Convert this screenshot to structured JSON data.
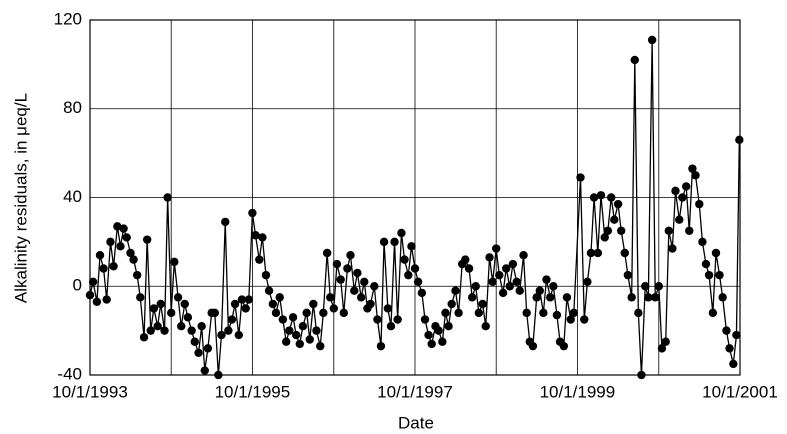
{
  "chart_data": {
    "type": "line",
    "xlabel": "Date",
    "ylabel": "Alkalinity residuals, in μeq/L",
    "color": "#000000",
    "grid": true,
    "xlim": [
      "1993-10-01",
      "2001-10-01"
    ],
    "ylim": [
      -40,
      120
    ],
    "yticks": [
      -40,
      0,
      40,
      80,
      120
    ],
    "xticks": [
      {
        "value": "1993-10-01",
        "label": "10/1/1993"
      },
      "1994-10-01",
      {
        "value": "1995-10-01",
        "label": "10/1/1995"
      },
      "1996-10-01",
      {
        "value": "1997-10-01",
        "label": "10/1/1997"
      },
      "1998-10-01",
      {
        "value": "1999-10-01",
        "label": "10/1/1999"
      },
      "2000-10-01",
      {
        "value": "2001-10-01",
        "label": "10/1/2001"
      }
    ],
    "x": [
      "1993-10-01",
      "1993-10-15",
      "1993-11-01",
      "1993-11-15",
      "1993-12-01",
      "1993-12-15",
      "1994-01-01",
      "1994-01-15",
      "1994-02-01",
      "1994-02-15",
      "1994-03-01",
      "1994-03-15",
      "1994-04-01",
      "1994-04-15",
      "1994-05-01",
      "1994-05-15",
      "1994-06-01",
      "1994-06-15",
      "1994-07-01",
      "1994-07-15",
      "1994-08-01",
      "1994-08-15",
      "1994-09-01",
      "1994-09-15",
      "1994-10-01",
      "1994-10-15",
      "1994-11-01",
      "1994-11-15",
      "1994-12-01",
      "1994-12-15",
      "1995-01-01",
      "1995-01-15",
      "1995-02-01",
      "1995-02-15",
      "1995-03-01",
      "1995-03-15",
      "1995-04-01",
      "1995-04-15",
      "1995-05-01",
      "1995-05-15",
      "1995-06-01",
      "1995-06-15",
      "1995-07-01",
      "1995-07-15",
      "1995-08-01",
      "1995-08-15",
      "1995-09-01",
      "1995-09-15",
      "1995-10-01",
      "1995-10-15",
      "1995-11-01",
      "1995-11-15",
      "1995-12-01",
      "1995-12-15",
      "1996-01-01",
      "1996-01-15",
      "1996-02-01",
      "1996-02-15",
      "1996-03-01",
      "1996-03-15",
      "1996-04-01",
      "1996-04-15",
      "1996-05-01",
      "1996-05-15",
      "1996-06-01",
      "1996-06-15",
      "1996-07-01",
      "1996-07-15",
      "1996-08-01",
      "1996-08-15",
      "1996-09-01",
      "1996-09-15",
      "1996-10-01",
      "1996-10-15",
      "1996-11-01",
      "1996-11-15",
      "1996-12-01",
      "1996-12-15",
      "1997-01-01",
      "1997-01-15",
      "1997-02-01",
      "1997-02-15",
      "1997-03-01",
      "1997-03-15",
      "1997-04-01",
      "1997-04-15",
      "1997-05-01",
      "1997-05-15",
      "1997-06-01",
      "1997-06-15",
      "1997-07-01",
      "1997-07-15",
      "1997-08-01",
      "1997-08-15",
      "1997-09-01",
      "1997-09-15",
      "1997-10-01",
      "1997-10-15",
      "1997-11-01",
      "1997-11-15",
      "1997-12-01",
      "1997-12-15",
      "1998-01-01",
      "1998-01-15",
      "1998-02-01",
      "1998-02-15",
      "1998-03-01",
      "1998-03-15",
      "1998-04-01",
      "1998-04-15",
      "1998-05-01",
      "1998-05-15",
      "1998-06-01",
      "1998-06-15",
      "1998-07-01",
      "1998-07-15",
      "1998-08-01",
      "1998-08-15",
      "1998-09-01",
      "1998-09-15",
      "1998-10-01",
      "1998-10-15",
      "1998-11-01",
      "1998-11-15",
      "1998-12-01",
      "1998-12-15",
      "1999-01-01",
      "1999-01-15",
      "1999-02-01",
      "1999-02-15",
      "1999-03-01",
      "1999-03-15",
      "1999-04-01",
      "1999-04-15",
      "1999-05-01",
      "1999-05-15",
      "1999-06-01",
      "1999-06-15",
      "1999-07-01",
      "1999-07-15",
      "1999-08-01",
      "1999-08-15",
      "1999-09-01",
      "1999-09-15",
      "1999-10-15",
      "1999-11-01",
      "1999-11-15",
      "1999-12-01",
      "1999-12-15",
      "2000-01-01",
      "2000-01-15",
      "2000-02-01",
      "2000-02-15",
      "2000-03-01",
      "2000-03-15",
      "2000-04-01",
      "2000-04-15",
      "2000-05-01",
      "2000-05-15",
      "2000-06-01",
      "2000-06-15",
      "2000-07-01",
      "2000-07-15",
      "2000-08-01",
      "2000-08-15",
      "2000-09-01",
      "2000-09-15",
      "2000-10-01",
      "2000-10-15",
      "2000-11-01",
      "2000-11-15",
      "2000-12-01",
      "2000-12-15",
      "2001-01-01",
      "2001-01-15",
      "2001-02-01",
      "2001-02-15",
      "2001-03-01",
      "2001-03-15",
      "2001-04-01",
      "2001-04-15",
      "2001-05-01",
      "2001-05-15",
      "2001-06-01",
      "2001-06-15",
      "2001-07-01",
      "2001-07-15",
      "2001-08-01",
      "2001-08-15",
      "2001-09-01",
      "2001-09-15",
      "2001-09-28"
    ],
    "values": [
      -4,
      2,
      -7,
      14,
      8,
      -6,
      20,
      9,
      27,
      18,
      26,
      22,
      15,
      12,
      5,
      -5,
      -23,
      21,
      -20,
      -10,
      -18,
      -8,
      -20,
      40,
      -12,
      11,
      -5,
      -18,
      -8,
      -14,
      -20,
      -25,
      -30,
      -18,
      -38,
      -28,
      -12,
      -12,
      -40,
      -22,
      29,
      -20,
      -15,
      -8,
      -22,
      -6,
      -10,
      -6,
      33,
      23,
      12,
      22,
      5,
      -2,
      -8,
      -12,
      -5,
      -15,
      -25,
      -20,
      -14,
      -22,
      -26,
      -18,
      -12,
      -24,
      -8,
      -20,
      -27,
      -12,
      15,
      -5,
      -10,
      10,
      3,
      -12,
      8,
      14,
      -2,
      6,
      -5,
      2,
      -10,
      -8,
      0,
      -15,
      -27,
      20,
      -10,
      -18,
      20,
      -15,
      24,
      12,
      5,
      18,
      8,
      2,
      -3,
      -15,
      -22,
      -26,
      -18,
      -20,
      -25,
      -12,
      -18,
      -8,
      -2,
      -12,
      10,
      12,
      8,
      -5,
      0,
      -12,
      -8,
      -18,
      13,
      2,
      17,
      5,
      -3,
      8,
      0,
      10,
      2,
      -2,
      14,
      -12,
      -25,
      -27,
      -5,
      -2,
      -12,
      3,
      -5,
      0,
      -13,
      -25,
      -27,
      -5,
      -15,
      -12,
      49,
      -15,
      2,
      15,
      40,
      15,
      41,
      22,
      25,
      40,
      30,
      37,
      25,
      15,
      5,
      -5,
      102,
      -12,
      -40,
      0,
      -5,
      111,
      -5,
      0,
      -28,
      -25,
      25,
      17,
      43,
      30,
      40,
      45,
      25,
      53,
      50,
      37,
      20,
      10,
      5,
      -12,
      15,
      5,
      -5,
      -20,
      -28,
      -35,
      -22,
      66
    ]
  }
}
